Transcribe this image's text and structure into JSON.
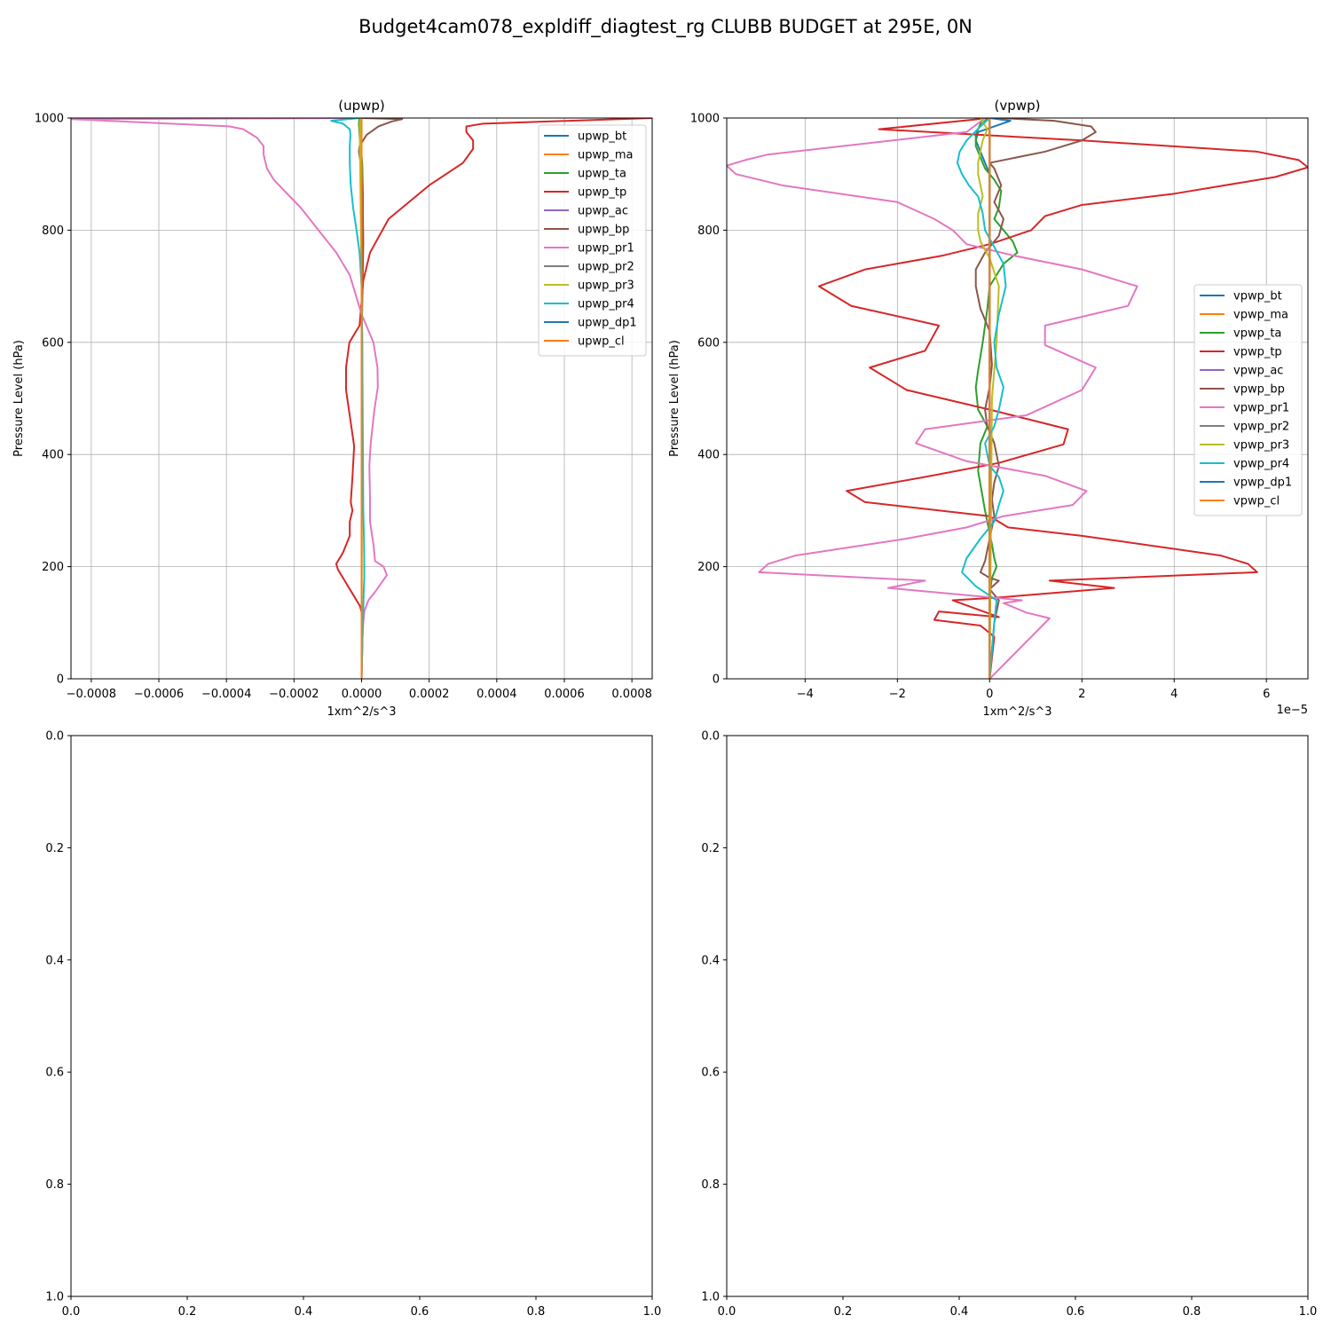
{
  "suptitle": "Budget4cam078_expldiff_diagtest_rg CLUBB BUDGET at 295E, 0N",
  "chart_data": [
    {
      "type": "line",
      "title": "(upwp)",
      "xlabel": "1xm^2/s^3",
      "ylabel": "Pressure Level (hPa)",
      "xlim": [
        -0.00086,
        0.00086
      ],
      "ylim": [
        1000,
        0
      ],
      "xticks": [
        -0.0008,
        -0.0006,
        -0.0004,
        -0.0002,
        0.0,
        0.0002,
        0.0004,
        0.0006,
        0.0008
      ],
      "xtick_labels": [
        "−0.0008",
        "−0.0006",
        "−0.0004",
        "−0.0002",
        "0.0000",
        "0.0002",
        "0.0004",
        "0.0006",
        "0.0008"
      ],
      "yticks": [
        0,
        200,
        400,
        600,
        800,
        1000
      ],
      "ytick_labels": [
        "0",
        "200",
        "400",
        "600",
        "800",
        "1000"
      ],
      "offset_label": "",
      "grid": true,
      "legend_loc": "upper right",
      "series": [
        {
          "name": "upwp_bt",
          "color": "#1f77b4",
          "x": [
            0,
            0
          ],
          "y": [
            0,
            1000
          ]
        },
        {
          "name": "upwp_ma",
          "color": "#ff7f0e",
          "x": [
            0,
            0
          ],
          "y": [
            0,
            1000
          ]
        },
        {
          "name": "upwp_ta",
          "color": "#2ca02c",
          "x": [
            0,
            0,
            3e-06,
            4e-06,
            2e-06,
            -5e-06,
            -8e-06,
            -6e-06
          ],
          "y": [
            0,
            600,
            780,
            860,
            920,
            960,
            990,
            1000
          ]
        },
        {
          "name": "upwp_tp",
          "color": "#d62728",
          "x": [
            0,
            4e-06,
            -5e-06,
            -2.5e-05,
            -5.5e-05,
            -7e-05,
            -7.5e-05,
            -5.5e-05,
            -3.5e-05,
            -3.5e-05,
            -2.7e-05,
            -3.2e-05,
            -2.7e-05,
            -2.2e-05,
            -4.6e-05,
            -4.6e-05,
            -3.6e-05,
            -6e-06,
            5e-06,
            2.5e-05,
            8e-05,
            0.0002,
            0.0003,
            0.00033,
            0.00033,
            0.00031,
            0.00031,
            0.00036,
            0.00086
          ],
          "y": [
            0,
            110,
            130,
            150,
            180,
            195,
            205,
            225,
            255,
            280,
            300,
            315,
            360,
            415,
            515,
            555,
            600,
            630,
            710,
            760,
            820,
            880,
            920,
            945,
            960,
            975,
            985,
            990,
            1000
          ]
        },
        {
          "name": "upwp_ac",
          "color": "#9467bd",
          "x": [
            0,
            0
          ],
          "y": [
            0,
            1000
          ]
        },
        {
          "name": "upwp_bp",
          "color": "#8c564b",
          "x": [
            0,
            0,
            3e-06,
            5e-06,
            4e-06,
            2e-06,
            -3e-06,
            -8e-06,
            -6e-06,
            1.5e-05,
            5e-05,
            9e-05,
            0.00012,
            0
          ],
          "y": [
            0,
            600,
            700,
            780,
            820,
            880,
            920,
            940,
            950,
            970,
            985,
            994,
            998,
            1000
          ]
        },
        {
          "name": "upwp_pr1",
          "color": "#e377c2",
          "x": [
            0,
            2e-06,
            5e-06,
            8e-06,
            2e-05,
            4e-05,
            7.5e-05,
            6.5e-05,
            4e-05,
            3.5e-05,
            2.5e-05,
            2.5e-05,
            2.3e-05,
            2.7e-05,
            3.8e-05,
            4.8e-05,
            4.7e-05,
            3.5e-05,
            0,
            -3.5e-05,
            -7.5e-05,
            -0.00018,
            -0.00026,
            -0.00028,
            -0.00029,
            -0.00029,
            -0.00031,
            -0.00035,
            -0.00039,
            -0.00086,
            -2e-05
          ],
          "y": [
            0,
            70,
            100,
            120,
            140,
            155,
            185,
            200,
            210,
            240,
            280,
            320,
            380,
            420,
            480,
            520,
            555,
            600,
            650,
            720,
            760,
            840,
            890,
            910,
            935,
            950,
            965,
            980,
            985,
            998,
            1000
          ]
        },
        {
          "name": "upwp_pr2",
          "color": "#7f7f7f",
          "x": [
            0,
            0
          ],
          "y": [
            0,
            1000
          ]
        },
        {
          "name": "upwp_pr3",
          "color": "#bcbd22",
          "x": [
            0,
            2e-06,
            -2e-06,
            -5e-06,
            -5e-06,
            -3e-06
          ],
          "y": [
            0,
            600,
            800,
            950,
            990,
            1000
          ]
        },
        {
          "name": "upwp_pr4",
          "color": "#17becf",
          "x": [
            0,
            3e-06,
            5e-06,
            6e-06,
            8e-06,
            8e-06,
            7e-06,
            5e-06,
            4e-06,
            3e-06,
            2e-06,
            0,
            -6e-06,
            -1.5e-05,
            -2.5e-05,
            -3.2e-05,
            -3.5e-05,
            -3.5e-05,
            -3.3e-05,
            -3.5e-05,
            -5.5e-05,
            -9e-05,
            -5e-06
          ],
          "y": [
            0,
            80,
            120,
            150,
            180,
            200,
            250,
            300,
            400,
            500,
            600,
            700,
            760,
            800,
            840,
            880,
            920,
            950,
            970,
            980,
            990,
            995,
            1000
          ]
        },
        {
          "name": "upwp_dp1",
          "color": "#1f77b4",
          "x": [
            0,
            0
          ],
          "y": [
            0,
            1000
          ]
        },
        {
          "name": "upwp_cl",
          "color": "#ff7f0e",
          "x": [
            0,
            0
          ],
          "y": [
            0,
            1000
          ]
        }
      ]
    },
    {
      "type": "line",
      "title": "(vpwp)",
      "xlabel": "1xm^2/s^3",
      "ylabel": "Pressure Level (hPa)",
      "xlim": [
        -5.7,
        6.9
      ],
      "ylim": [
        1000,
        0
      ],
      "xticks": [
        -4,
        -2,
        0,
        2,
        4,
        6
      ],
      "xtick_labels": [
        "−4",
        "−2",
        "0",
        "2",
        "4",
        "6"
      ],
      "yticks": [
        0,
        200,
        400,
        600,
        800,
        1000
      ],
      "ytick_labels": [
        "0",
        "200",
        "400",
        "600",
        "800",
        "1000"
      ],
      "offset_label": "1e−5",
      "grid": true,
      "legend_loc": "center right",
      "series": [
        {
          "name": "vpwp_bt",
          "color": "#1f77b4",
          "x": [
            0,
            0,
            -0.2,
            -0.3,
            -0.25,
            0.1,
            0.45,
            0
          ],
          "y": [
            0,
            900,
            940,
            960,
            975,
            985,
            995,
            1000
          ]
        },
        {
          "name": "vpwp_ma",
          "color": "#ff7f0e",
          "x": [
            0,
            0
          ],
          "y": [
            0,
            1000
          ]
        },
        {
          "name": "vpwp_ta",
          "color": "#2ca02c",
          "x": [
            0,
            0,
            0.05,
            0.15,
            0.1,
            0.05,
            -0.1,
            -0.25,
            -0.2,
            -0.05,
            -0.25,
            -0.3,
            -0.25,
            -0.15,
            -0.05,
            0.0,
            0.3,
            0.6,
            0.5,
            0.3,
            0.1,
            0.2,
            0.25,
            0.1,
            -0.1,
            -0.2,
            -0.3,
            -0.3,
            -0.2,
            0
          ],
          "y": [
            0,
            150,
            180,
            200,
            215,
            240,
            300,
            370,
            420,
            450,
            480,
            520,
            550,
            600,
            660,
            700,
            740,
            760,
            780,
            800,
            820,
            840,
            870,
            890,
            910,
            930,
            950,
            970,
            990,
            1000
          ]
        },
        {
          "name": "vpwp_tp",
          "color": "#d62728",
          "x": [
            0,
            0.1,
            -0.2,
            -1.2,
            -1.1,
            0.2,
            -0.8,
            0.2,
            2.7,
            1.3,
            5.8,
            5.6,
            5.0,
            2.0,
            0.4,
            0.0,
            -2.7,
            -3.1,
            -1.4,
            0.2,
            1.6,
            1.7,
            0.0,
            -1.8,
            -2.6,
            -1.4,
            -1.1,
            -3.0,
            -3.7,
            -2.7,
            -1.0,
            0.0,
            0.9,
            1.2,
            2.0,
            4.0,
            6.2,
            6.9,
            6.7,
            5.8,
            2.0,
            -2.4,
            0.0
          ],
          "y": [
            0,
            75,
            95,
            105,
            120,
            110,
            140,
            145,
            162,
            175,
            190,
            205,
            220,
            255,
            270,
            290,
            315,
            335,
            360,
            385,
            418,
            445,
            480,
            515,
            555,
            585,
            630,
            665,
            700,
            730,
            755,
            775,
            800,
            825,
            845,
            865,
            895,
            912,
            925,
            940,
            960,
            980,
            1000
          ]
        },
        {
          "name": "vpwp_ac",
          "color": "#9467bd",
          "x": [
            0,
            0
          ],
          "y": [
            0,
            1000
          ]
        },
        {
          "name": "vpwp_bp",
          "color": "#8c564b",
          "x": [
            0,
            0.1,
            0.2,
            0.0,
            0.2,
            0.0,
            -0.2,
            -0.1,
            0.0,
            0.1,
            0.05,
            0.1,
            0.2,
            0.1,
            -0.05,
            -0.1,
            0.0,
            0.05,
            0.0,
            -0.2,
            -0.3,
            -0.3,
            -0.1,
            0.2,
            0.3,
            0.1,
            0.25,
            0.1,
            0.0,
            1.2,
            2.0,
            2.3,
            2.2,
            1.4,
            0.2
          ],
          "y": [
            0,
            100,
            140,
            160,
            175,
            180,
            190,
            210,
            250,
            290,
            320,
            350,
            380,
            420,
            450,
            480,
            520,
            560,
            620,
            660,
            700,
            730,
            760,
            790,
            820,
            850,
            880,
            910,
            920,
            940,
            960,
            975,
            985,
            995,
            1000
          ]
        },
        {
          "name": "vpwp_pr1",
          "color": "#e377c2",
          "x": [
            0,
            1.3,
            0.8,
            0.3,
            0.7,
            -0.6,
            -2.2,
            -1.4,
            -5.0,
            -4.8,
            -4.2,
            -1.8,
            -0.5,
            0.3,
            1.8,
            2.1,
            1.2,
            -0.5,
            -1.6,
            -1.4,
            0.8,
            2.0,
            2.3,
            1.2,
            1.2,
            3.0,
            3.2,
            2.0,
            0.5,
            -0.5,
            -0.8,
            -1.2,
            -2.0,
            -4.5,
            -5.5,
            -5.7,
            -5.3,
            -4.8,
            -0.5,
            -0.1
          ],
          "y": [
            0,
            108,
            118,
            135,
            140,
            150,
            162,
            175,
            190,
            205,
            220,
            250,
            270,
            290,
            310,
            335,
            362,
            388,
            420,
            445,
            470,
            515,
            555,
            595,
            630,
            665,
            700,
            730,
            755,
            775,
            800,
            820,
            850,
            880,
            900,
            915,
            925,
            935,
            975,
            1000
          ]
        },
        {
          "name": "vpwp_pr2",
          "color": "#7f7f7f",
          "x": [
            0,
            0
          ],
          "y": [
            0,
            1000
          ]
        },
        {
          "name": "vpwp_pr3",
          "color": "#bcbd22",
          "x": [
            0,
            0.05,
            0.15,
            0.2,
            0.0,
            -0.2,
            -0.25,
            -0.25,
            -0.15,
            -0.2,
            -0.25,
            -0.25,
            -0.2,
            -0.15,
            -0.05,
            -0.2
          ],
          "y": [
            0,
            500,
            600,
            700,
            750,
            780,
            800,
            830,
            860,
            880,
            900,
            920,
            940,
            960,
            980,
            1000
          ]
        },
        {
          "name": "vpwp_pr4",
          "color": "#17becf",
          "x": [
            0,
            0.1,
            0.15,
            -0.3,
            -0.6,
            -0.5,
            -0.2,
            0.1,
            0.2,
            0.3,
            0.2,
            0.0,
            -0.1,
            0.1,
            0.2,
            0.3,
            0.15,
            0.1,
            0.2,
            0.35,
            0.3,
            0.1,
            -0.1,
            -0.15,
            -0.25,
            -0.45,
            -0.6,
            -0.7,
            -0.65,
            -0.5,
            -0.2,
            0.0
          ],
          "y": [
            0,
            100,
            140,
            165,
            190,
            215,
            250,
            280,
            310,
            335,
            360,
            380,
            420,
            450,
            480,
            520,
            555,
            600,
            650,
            700,
            740,
            770,
            800,
            830,
            860,
            880,
            900,
            920,
            940,
            960,
            985,
            1000
          ]
        },
        {
          "name": "vpwp_dp1",
          "color": "#1f77b4",
          "x": [
            0,
            0
          ],
          "y": [
            0,
            1000
          ]
        },
        {
          "name": "vpwp_cl",
          "color": "#ff7f0e",
          "x": [
            0,
            0
          ],
          "y": [
            0,
            1000
          ]
        }
      ]
    },
    {
      "type": "line",
      "title": "",
      "xlim": [
        0,
        1
      ],
      "ylim": [
        0,
        1
      ],
      "xticks": [
        0,
        0.2,
        0.4,
        0.6,
        0.8,
        1.0
      ],
      "xtick_labels": [
        "0.0",
        "0.2",
        "0.4",
        "0.6",
        "0.8",
        "1.0"
      ],
      "yticks": [
        0,
        0.2,
        0.4,
        0.6,
        0.8,
        1.0
      ],
      "ytick_labels": [
        "0.0",
        "0.2",
        "0.4",
        "0.6",
        "0.8",
        "1.0"
      ],
      "grid": false,
      "series": []
    },
    {
      "type": "line",
      "title": "",
      "xlim": [
        0,
        1
      ],
      "ylim": [
        0,
        1
      ],
      "xticks": [
        0,
        0.2,
        0.4,
        0.6,
        0.8,
        1.0
      ],
      "xtick_labels": [
        "0.0",
        "0.2",
        "0.4",
        "0.6",
        "0.8",
        "1.0"
      ],
      "yticks": [
        0,
        0.2,
        0.4,
        0.6,
        0.8,
        1.0
      ],
      "ytick_labels": [
        "0.0",
        "0.2",
        "0.4",
        "0.6",
        "0.8",
        "1.0"
      ],
      "grid": false,
      "series": []
    }
  ]
}
